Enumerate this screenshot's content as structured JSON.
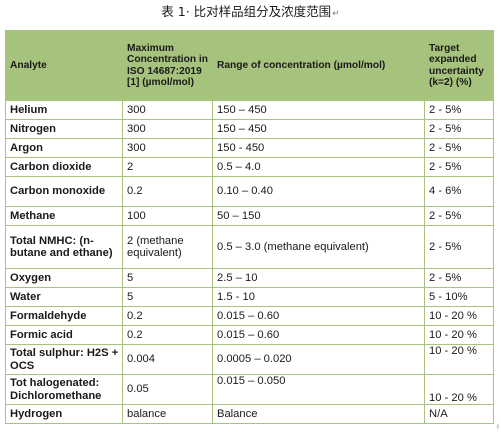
{
  "caption": {
    "text": "表 1· 比对样品组分及浓度范围",
    "mark": "↵"
  },
  "table": {
    "headers": [
      "Analyte",
      "Maximum Concentration in ISO 14687:2019 [1] (µmol/mol)",
      "Range of concentration (µmol/mol)",
      "Target expanded uncertainty (k=2) (%)"
    ],
    "rows": [
      [
        "Helium",
        "300",
        "150 – 450",
        "2 - 5%"
      ],
      [
        "Nitrogen",
        "300",
        "150 – 450",
        "2 - 5%"
      ],
      [
        "Argon",
        "300",
        "150 - 450",
        "2 - 5%"
      ],
      [
        "Carbon dioxide",
        "2",
        "0.5 – 4.0",
        "2 - 5%"
      ],
      [
        "Carbon monoxide",
        "0.2",
        "0.10 – 0.40",
        "4 - 6%"
      ],
      [
        "Methane",
        "100",
        "50 – 150",
        "2 - 5%"
      ],
      [
        "Total NMHC: (n-butane and ethane)",
        "2 (methane equivalent)",
        "0.5 – 3.0 (methane equivalent)",
        "2 - 5%"
      ],
      [
        "Oxygen",
        "5",
        "2.5 – 10",
        "2 - 5%"
      ],
      [
        "Water",
        "5",
        "1.5 - 10",
        "5 - 10%"
      ],
      [
        "Formaldehyde",
        "0.2",
        "0.015 – 0.60",
        "10 - 20 %"
      ],
      [
        "Formic acid",
        "0.2",
        "0.015 – 0.60",
        "10 - 20 %"
      ],
      [
        "Total sulphur: H2S + OCS",
        "0.004",
        "0.0005 – 0.020",
        "10 - 20 %"
      ],
      [
        "Tot halogenated: Dichloromethane",
        "0.05",
        "0.015 – 0.050",
        "10 - 20 %"
      ],
      [
        "Hydrogen",
        "balance",
        "Balance",
        "N/A"
      ]
    ]
  },
  "corner_mark": "ɫ"
}
